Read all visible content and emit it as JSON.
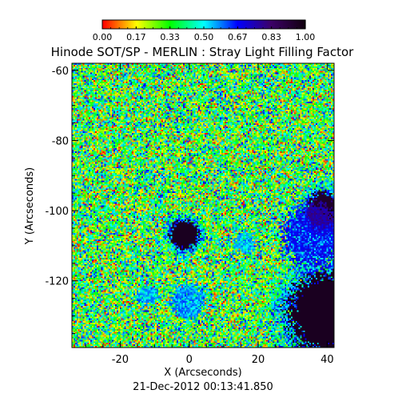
{
  "chart_data": {
    "type": "heatmap",
    "title": "Hinode SOT/SP - MERLIN : Stray Light Filling Factor",
    "xlabel": "X (Arcseconds)",
    "ylabel": "Y (Arcseconds)",
    "xlim": [
      -34,
      42
    ],
    "ylim": [
      -139,
      -58
    ],
    "x_ticks": [
      -20,
      0,
      20,
      40
    ],
    "y_ticks": [
      -60,
      -80,
      -100,
      -120
    ],
    "colorbar": {
      "range": [
        0,
        1
      ],
      "tick_labels": [
        "0.00",
        "0.17",
        "0.33",
        "0.50",
        "0.67",
        "0.83",
        "1.00"
      ],
      "colors": [
        "#ff0000",
        "#ffff00",
        "#00ff00",
        "#00ffff",
        "#0000ff",
        "#3c0068",
        "#120010"
      ]
    },
    "timestamp": "21-Dec-2012 00:13:41.850",
    "background_level": 0.35,
    "features": [
      {
        "kind": "pore",
        "x": -1.5,
        "y": -107,
        "radius": 4,
        "value": 0.97
      },
      {
        "kind": "sunspot",
        "x": 40,
        "y": -129,
        "radius": 11,
        "value": 0.97
      },
      {
        "kind": "sunspot",
        "x": 39,
        "y": -100,
        "radius": 5,
        "value": 0.95
      },
      {
        "kind": "plage",
        "x": 36,
        "y": -107,
        "radius": 9,
        "value": 0.72
      },
      {
        "kind": "plage",
        "x": 0,
        "y": -126,
        "radius": 5,
        "value": 0.62
      },
      {
        "kind": "plage",
        "x": -12,
        "y": -124,
        "radius": 3,
        "value": 0.6
      },
      {
        "kind": "plage",
        "x": 16,
        "y": -109,
        "radius": 3,
        "value": 0.58
      }
    ]
  }
}
